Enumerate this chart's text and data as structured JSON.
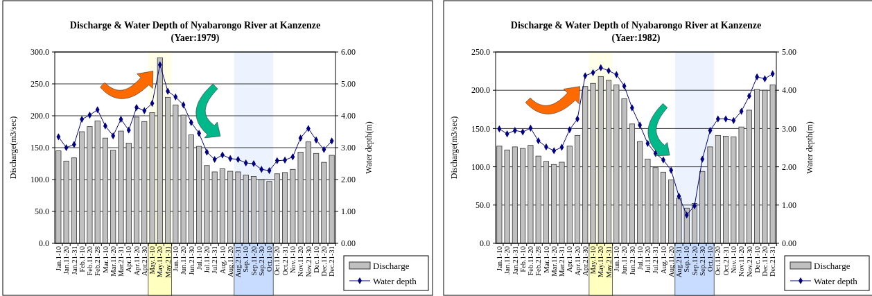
{
  "chart_data": [
    {
      "type": "bar",
      "title": "Discharge & Water Depth of Nyabarongo River at Kanzenze",
      "subtitle": "(Yaer:1979)",
      "ylabel": "Discharge(m3/sec)",
      "y2label": "Water depth(m)",
      "categories": [
        "Jan.1-10",
        "Jan.11-20",
        "Jan.21-31",
        "Feb.1-10",
        "Feb.11-20",
        "Feb.21-28",
        "Mar.1-10",
        "Mar.11-20",
        "Mar.21-31",
        "Apr.1-10",
        "Apr.11-20",
        "Apr.21-30",
        "May.1-10",
        "May.11-20",
        "May.21-31",
        "Jun.1-10",
        "Jun.11-20",
        "Jun.21-30",
        "Jul.1-10",
        "Jul.11-20",
        "Jul.21-31",
        "Aug.1-10",
        "Aug.11-20",
        "Aug.21-31",
        "Sep.1-10",
        "Sep.11-20",
        "Sep.21-30",
        "Oct.1-10",
        "Oct.11-20",
        "Oct.21-31",
        "Nov.1-10",
        "Nov.11-20",
        "Nov.21-30",
        "Dec.1-10",
        "Dec.11-20",
        "Dec.21-31"
      ],
      "series": [
        {
          "name": "Discharge",
          "color": "#c0c0c0",
          "values": [
            145,
            129,
            134,
            175,
            183,
            192,
            165,
            146,
            176,
            157,
            198,
            191,
            205,
            291,
            229,
            217,
            201,
            170,
            152,
            122,
            112,
            117,
            113,
            112,
            107,
            105,
            100,
            97,
            109,
            111,
            116,
            143,
            159,
            141,
            127,
            138
          ]
        },
        {
          "name": "Water depth",
          "type": "line",
          "axis": "y2",
          "color": "#000080",
          "marker": "diamond",
          "values": [
            3.34,
            3.0,
            3.1,
            3.89,
            4.02,
            4.19,
            3.68,
            3.37,
            3.89,
            3.55,
            4.26,
            4.16,
            4.39,
            5.6,
            4.77,
            4.59,
            4.34,
            3.79,
            3.45,
            2.86,
            2.63,
            2.77,
            2.66,
            2.63,
            2.52,
            2.5,
            2.32,
            2.28,
            2.59,
            2.61,
            2.71,
            3.3,
            3.6,
            3.24,
            2.94,
            3.21
          ]
        }
      ],
      "ylim": [
        0,
        300
      ],
      "yticks": [
        {
          "value": 0,
          "label": "0.0"
        },
        {
          "value": 50,
          "label": "50.0"
        },
        {
          "value": 100,
          "label": "100.0"
        },
        {
          "value": 150,
          "label": "150.0"
        },
        {
          "value": 200,
          "label": "200.0"
        },
        {
          "value": 250,
          "label": "250.0"
        },
        {
          "value": 300,
          "label": "300.0"
        }
      ],
      "y2lim": [
        0,
        6
      ],
      "y2ticks": [
        {
          "value": 0,
          "label": "0.00"
        },
        {
          "value": 1,
          "label": "1.00"
        },
        {
          "value": 2,
          "label": "2.00"
        },
        {
          "value": 3,
          "label": "3.00"
        },
        {
          "value": 4,
          "label": "4.00"
        },
        {
          "value": 5,
          "label": "5.00"
        },
        {
          "value": 6,
          "label": "6.00"
        }
      ],
      "bands": [
        {
          "axis": "x",
          "from": "May.1-10",
          "to": "May.21-31",
          "color": "#ffffc0"
        },
        {
          "axis": "x",
          "from": "Aug.21-31",
          "to": "Oct.1-10",
          "color": "#c8dcff"
        }
      ],
      "grid": "y",
      "legend": "bottom right"
    },
    {
      "type": "bar",
      "title": "Discharge & Water Depth of Nyabarongo River at Kanzenze",
      "subtitle": "(Yaer:1982)",
      "ylabel": "Discharge(m3/sec)",
      "y2label": "Water depth(m)",
      "categories": [
        "Jan.1-10",
        "Jan.11-20",
        "Jan.21-31",
        "Feb.1-10",
        "Feb.11-20",
        "Feb.21-28",
        "Mar.1-10",
        "Mar.11-20",
        "Mar.21-31",
        "Apr.1-10",
        "Apr.11-20",
        "Apr.21-30",
        "May.1-10",
        "May.11-20",
        "May.21-31",
        "Jun.1-10",
        "Jun.11-20",
        "Jun.21-30",
        "Jul.1-10",
        "Jul.11-20",
        "Jul.21-31",
        "Aug.1-10",
        "Aug.11-20",
        "Aug.21-31",
        "Sep.1-10",
        "Sep.11-20",
        "Sep.21-30",
        "Oct.1-10",
        "Oct.11-20",
        "Oct.21-31",
        "Nov.1-10",
        "Nov.11-20",
        "Nov.21-30",
        "Dec.1-10",
        "Dec.11-20",
        "Dec.21-31"
      ],
      "series": [
        {
          "name": "Discharge",
          "color": "#c0c0c0",
          "values": [
            127,
            122,
            126,
            124,
            128,
            114,
            107,
            103,
            106,
            127,
            141,
            205,
            209,
            218,
            213,
            207,
            189,
            156,
            133,
            110,
            99,
            93,
            83,
            59,
            46,
            52,
            94,
            126,
            141,
            140,
            139,
            152,
            174,
            201,
            200,
            207
          ]
        },
        {
          "name": "Water depth",
          "type": "line",
          "axis": "y2",
          "color": "#000080",
          "marker": "diamond",
          "values": [
            2.99,
            2.86,
            2.95,
            2.91,
            3.01,
            2.68,
            2.52,
            2.42,
            2.51,
            2.97,
            3.25,
            4.38,
            4.46,
            4.59,
            4.51,
            4.41,
            4.11,
            3.54,
            3.09,
            2.61,
            2.35,
            2.18,
            1.91,
            1.23,
            0.74,
            0.98,
            2.2,
            2.95,
            3.25,
            3.25,
            3.21,
            3.45,
            3.85,
            4.35,
            4.3,
            4.43
          ]
        }
      ],
      "ylim": [
        0,
        250
      ],
      "yticks": [
        {
          "value": 0,
          "label": "0.0"
        },
        {
          "value": 50,
          "label": "50.0"
        },
        {
          "value": 100,
          "label": "100.0"
        },
        {
          "value": 150,
          "label": "150.0"
        },
        {
          "value": 200,
          "label": "200.0"
        },
        {
          "value": 250,
          "label": "250.0"
        }
      ],
      "y2lim": [
        0,
        5
      ],
      "y2ticks": [
        {
          "value": 0,
          "label": "0.00"
        },
        {
          "value": 1,
          "label": "1.00"
        },
        {
          "value": 2,
          "label": "2.00"
        },
        {
          "value": 3,
          "label": "3.00"
        },
        {
          "value": 4,
          "label": "4.00"
        },
        {
          "value": 5,
          "label": "5.00"
        }
      ],
      "bands": [
        {
          "axis": "x",
          "from": "May.1-10",
          "to": "May.21-31",
          "color": "#ffffc0"
        },
        {
          "axis": "x",
          "from": "Aug.21-31",
          "to": "Oct.1-10",
          "color": "#c8dcff"
        }
      ],
      "grid": "y",
      "legend": "bottom right"
    }
  ]
}
